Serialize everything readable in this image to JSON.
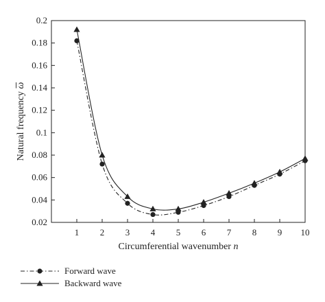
{
  "chart_data": {
    "type": "line",
    "xlabel": "Circumferential wavenumber",
    "xlabel_var": "n",
    "ylabel": "Natural frequency",
    "ylabel_var": "ω",
    "xlim": [
      0,
      10
    ],
    "ylim": [
      0.02,
      0.2
    ],
    "x_ticks": [
      1,
      2,
      3,
      4,
      5,
      6,
      7,
      8,
      9,
      10
    ],
    "y_ticks": [
      0.02,
      0.04,
      0.06,
      0.08,
      0.1,
      0.12,
      0.14,
      0.16,
      0.18,
      0.2
    ],
    "y_tick_labels": [
      "0.02",
      "0.04",
      "0.06",
      "0.08",
      "0.1",
      "0.12",
      "0.14",
      "0.16",
      "0.18",
      "0.2"
    ],
    "grid": false,
    "legend_position": "bottom-left, below plot",
    "series": [
      {
        "name": "Forward wave",
        "marker": "circle",
        "line_style": "dash-dot",
        "x": [
          1,
          2,
          3,
          4,
          5,
          6,
          7,
          8,
          9,
          10
        ],
        "values": [
          0.182,
          0.072,
          0.037,
          0.027,
          0.029,
          0.035,
          0.043,
          0.053,
          0.063,
          0.075
        ]
      },
      {
        "name": "Backward wave",
        "marker": "triangle",
        "line_style": "solid",
        "x": [
          1,
          2,
          3,
          4,
          5,
          6,
          7,
          8,
          9,
          10
        ],
        "values": [
          0.192,
          0.08,
          0.043,
          0.032,
          0.032,
          0.038,
          0.046,
          0.055,
          0.065,
          0.077
        ]
      }
    ]
  },
  "colors": {
    "line": "#222222",
    "axis": "#222222"
  }
}
